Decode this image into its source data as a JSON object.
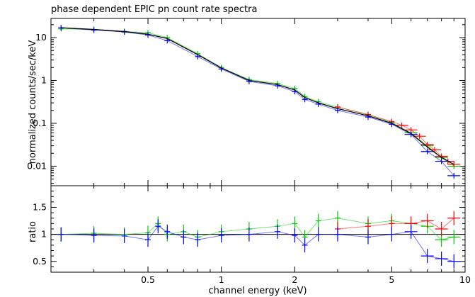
{
  "chart_data": [
    {
      "type": "scatter",
      "title": "phase dependent EPIC pn count rate spectra",
      "ylabel": "normalized counts/sec/keV",
      "xlabel": "",
      "xscale": "log",
      "yscale": "log",
      "xlim": [
        0.2,
        10
      ],
      "ylim": [
        0.0035,
        28
      ],
      "x_tick_labels": [],
      "y_ticks": [
        {
          "value": 10,
          "label": "10"
        },
        {
          "value": 1,
          "label": "1"
        },
        {
          "value": 0.1,
          "label": "0.1"
        },
        {
          "value": 0.01,
          "label": "0.01"
        }
      ],
      "grid": false,
      "series": [
        {
          "color": "#00cc00",
          "x": [
            0.22,
            0.3,
            0.4,
            0.5,
            0.6,
            0.8,
            1.0,
            1.3,
            1.7,
            2.0,
            2.2,
            2.5,
            3.0,
            4.0,
            5.0,
            6.0,
            7.0,
            8.0,
            9.0
          ],
          "y": [
            16,
            15.5,
            14,
            13,
            10,
            4.2,
            2.0,
            1.05,
            0.85,
            0.65,
            0.42,
            0.32,
            0.24,
            0.16,
            0.105,
            0.06,
            0.03,
            0.016,
            0.01
          ]
        },
        {
          "color": "#ff0000",
          "x": [
            3.0,
            4.0,
            5.0,
            5.5,
            6.0,
            6.5,
            7.0,
            7.5,
            8.0,
            8.5,
            9.0
          ],
          "y": [
            0.24,
            0.16,
            0.11,
            0.09,
            0.07,
            0.05,
            0.032,
            0.024,
            0.017,
            0.013,
            0.011
          ]
        },
        {
          "color": "#0000ff",
          "x": [
            0.22,
            0.3,
            0.4,
            0.5,
            0.6,
            0.8,
            1.0,
            1.3,
            1.7,
            2.0,
            2.2,
            2.5,
            3.0,
            4.0,
            5.0,
            6.0,
            7.0,
            8.0,
            9.0
          ],
          "y": [
            17,
            15,
            13.5,
            11.5,
            8.5,
            3.6,
            1.85,
            0.95,
            0.75,
            0.55,
            0.36,
            0.28,
            0.2,
            0.14,
            0.095,
            0.055,
            0.022,
            0.013,
            0.006
          ]
        }
      ],
      "model": {
        "color": "#000000",
        "x": [
          0.22,
          0.3,
          0.4,
          0.5,
          0.6,
          0.8,
          1.0,
          1.3,
          1.7,
          2.0,
          2.2,
          2.5,
          3.0,
          4.0,
          5.0,
          6.0,
          7.0,
          8.0,
          9.0
        ],
        "y": [
          17,
          15.5,
          13.8,
          12,
          9.5,
          4.0,
          1.95,
          1.0,
          0.8,
          0.6,
          0.4,
          0.3,
          0.22,
          0.15,
          0.1,
          0.058,
          0.028,
          0.016,
          0.011
        ]
      }
    },
    {
      "type": "scatter",
      "title": "",
      "ylabel": "ratio",
      "xlabel": "channel energy (keV)",
      "xscale": "log",
      "yscale": "linear",
      "xlim": [
        0.2,
        10
      ],
      "ylim": [
        0.3,
        1.9
      ],
      "x_ticks": [
        {
          "value": 0.5,
          "label": "0.5"
        },
        {
          "value": 1,
          "label": "1"
        },
        {
          "value": 2,
          "label": "2"
        },
        {
          "value": 5,
          "label": "5"
        },
        {
          "value": 10,
          "label": "10"
        }
      ],
      "y_ticks": [
        {
          "value": 0.5,
          "label": "0.5"
        },
        {
          "value": 1,
          "label": "1"
        },
        {
          "value": 1.5,
          "label": "1.5"
        }
      ],
      "reference_line": 1,
      "grid": false,
      "series": [
        {
          "color": "#00cc00",
          "x": [
            0.22,
            0.3,
            0.4,
            0.5,
            0.55,
            0.6,
            0.7,
            0.8,
            1.0,
            1.3,
            1.7,
            2.0,
            2.2,
            2.5,
            3.0,
            4.0,
            5.0,
            6.0,
            7.0,
            8.0,
            9.0
          ],
          "y": [
            1.0,
            1.02,
            1.0,
            1.03,
            1.2,
            1.0,
            1.05,
            0.95,
            1.05,
            1.1,
            1.15,
            1.2,
            0.95,
            1.25,
            1.3,
            1.2,
            1.25,
            1.2,
            1.15,
            0.9,
            0.95
          ]
        },
        {
          "color": "#ff0000",
          "x": [
            3.0,
            4.0,
            5.0,
            6.0,
            7.0,
            8.0,
            9.0
          ],
          "y": [
            1.1,
            1.15,
            1.2,
            1.2,
            1.25,
            1.1,
            1.3
          ]
        },
        {
          "color": "#0000ff",
          "x": [
            0.22,
            0.3,
            0.4,
            0.5,
            0.55,
            0.6,
            0.7,
            0.8,
            1.0,
            1.3,
            1.7,
            2.0,
            2.2,
            2.5,
            3.0,
            4.0,
            5.0,
            6.0,
            7.0,
            8.0,
            9.0
          ],
          "y": [
            1.0,
            0.98,
            0.97,
            0.9,
            1.15,
            1.05,
            0.95,
            0.9,
            0.98,
            1.0,
            1.05,
            0.98,
            0.8,
            1.0,
            1.0,
            0.95,
            1.0,
            1.05,
            0.6,
            0.55,
            0.5
          ]
        }
      ]
    }
  ]
}
